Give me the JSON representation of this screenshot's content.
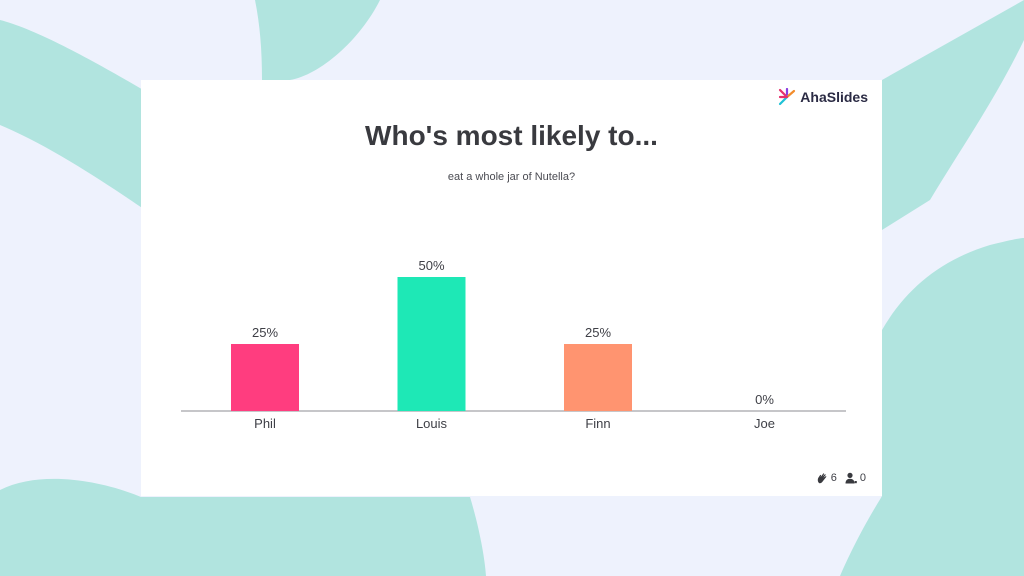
{
  "brand": {
    "logo_text": "AhaSlides",
    "logo_colors": [
      "#E7306C",
      "#8B3FE0",
      "#F28C2C",
      "#1FC1D6"
    ]
  },
  "slide": {
    "title": "Who's most likely to...",
    "subtitle": "eat a whole jar of Nutella?"
  },
  "chart_data": {
    "type": "bar",
    "categories": [
      "Phil",
      "Louis",
      "Finn",
      "Joe"
    ],
    "values": [
      25,
      50,
      25,
      0
    ],
    "value_labels": [
      "25%",
      "50%",
      "25%",
      "0%"
    ],
    "colors": [
      "#FF3D7F",
      "#1EE8B6",
      "#FF9470",
      "#B0B0B0"
    ],
    "ylim": [
      0,
      50
    ],
    "grid": false,
    "legend": "none"
  },
  "footer": {
    "reactions_icon": "clap-icon",
    "reactions_count": "6",
    "participants_icon": "user-icon",
    "participants_count": "0"
  },
  "colors": {
    "page_background": "#EEF2FD",
    "shape_accent": "#B1E4DF",
    "card_background": "#FFFFFF",
    "text": "#393A3F"
  }
}
